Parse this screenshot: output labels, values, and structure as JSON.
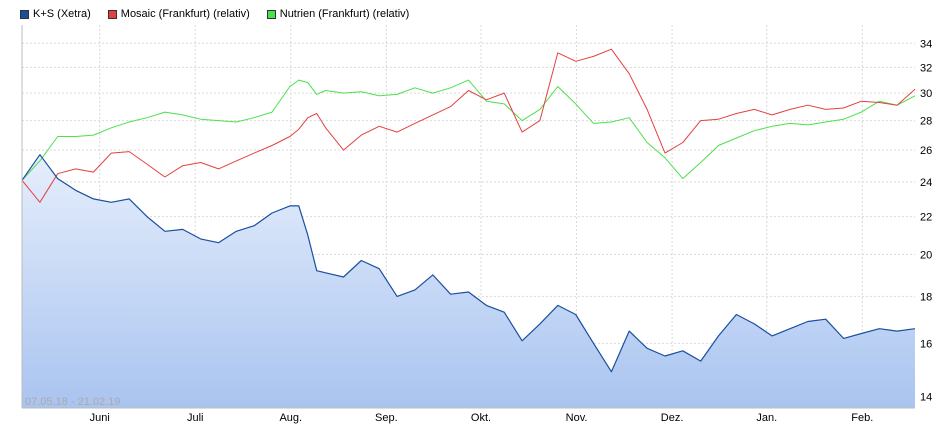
{
  "chart_data": {
    "type": "line",
    "title": "",
    "xlabel": "",
    "ylabel": "",
    "yscale": "log",
    "ylim": [
      13.6,
      35.6
    ],
    "y_ticks": [
      14,
      16,
      18,
      20,
      22,
      24,
      26,
      28,
      30,
      32,
      34
    ],
    "x_ticks": [
      "Juni",
      "Juli",
      "Aug.",
      "Sep.",
      "Okt.",
      "Nov.",
      "Dez.",
      "Jan.",
      "Feb."
    ],
    "x_tick_positions": [
      0.087,
      0.194,
      0.301,
      0.408,
      0.514,
      0.621,
      0.728,
      0.834,
      0.941
    ],
    "date_range_label": "07.05.18 - 21.02.19",
    "grid": true,
    "legend_position": "top-left",
    "x": [
      0,
      0.02,
      0.04,
      0.06,
      0.08,
      0.1,
      0.12,
      0.14,
      0.16,
      0.18,
      0.2,
      0.22,
      0.24,
      0.26,
      0.28,
      0.3,
      0.31,
      0.32,
      0.33,
      0.34,
      0.36,
      0.38,
      0.4,
      0.42,
      0.44,
      0.46,
      0.48,
      0.5,
      0.52,
      0.54,
      0.56,
      0.58,
      0.6,
      0.62,
      0.64,
      0.66,
      0.68,
      0.7,
      0.72,
      0.74,
      0.76,
      0.78,
      0.8,
      0.82,
      0.84,
      0.86,
      0.88,
      0.9,
      0.92,
      0.94,
      0.96,
      0.98,
      1.0
    ],
    "series": [
      {
        "name": "K+S (Xetra)",
        "color": "#1a4fa0",
        "values": [
          24.1,
          25.7,
          24.2,
          23.5,
          23.0,
          22.8,
          23.0,
          22.0,
          21.2,
          21.3,
          20.8,
          20.6,
          21.2,
          21.5,
          22.2,
          22.6,
          22.6,
          21.0,
          19.2,
          19.1,
          18.9,
          19.7,
          19.3,
          18.0,
          18.3,
          19.0,
          18.1,
          18.2,
          17.6,
          17.3,
          16.1,
          16.8,
          17.6,
          17.2,
          16.0,
          14.9,
          16.5,
          15.8,
          15.5,
          15.7,
          15.3,
          16.3,
          17.2,
          16.8,
          16.3,
          16.6,
          16.9,
          17.0,
          16.2,
          16.4,
          16.6,
          16.5,
          16.6
        ]
      },
      {
        "name": "Mosaic (Frankfurt) (relativ)",
        "color": "#e54040",
        "values": [
          24.1,
          22.8,
          24.5,
          24.8,
          24.6,
          25.8,
          25.9,
          25.1,
          24.3,
          25.0,
          25.2,
          24.8,
          25.3,
          25.8,
          26.3,
          26.9,
          27.4,
          28.2,
          28.5,
          27.5,
          26.0,
          27.0,
          27.6,
          27.2,
          27.8,
          28.4,
          29.0,
          30.2,
          29.5,
          30.0,
          27.2,
          28.0,
          33.2,
          32.5,
          32.9,
          33.5,
          31.5,
          28.8,
          25.8,
          26.5,
          28.0,
          28.1,
          28.5,
          28.8,
          28.4,
          28.8,
          29.1,
          28.8,
          28.9,
          29.4,
          29.3,
          29.1,
          30.3
        ]
      },
      {
        "name": "Nutrien (Frankfurt) (relativ)",
        "color": "#4ce04c",
        "values": [
          24.1,
          25.3,
          26.9,
          26.9,
          27.0,
          27.5,
          27.9,
          28.2,
          28.6,
          28.4,
          28.1,
          28.0,
          27.9,
          28.2,
          28.6,
          30.5,
          31.0,
          30.8,
          29.9,
          30.2,
          30.0,
          30.1,
          29.8,
          29.9,
          30.4,
          30.0,
          30.4,
          31.0,
          29.4,
          29.2,
          28.0,
          28.8,
          30.5,
          29.2,
          27.8,
          27.9,
          28.2,
          26.5,
          25.5,
          24.2,
          25.2,
          26.3,
          26.8,
          27.3,
          27.6,
          27.8,
          27.7,
          27.9,
          28.1,
          28.6,
          29.4,
          29.1,
          29.8
        ]
      }
    ]
  }
}
